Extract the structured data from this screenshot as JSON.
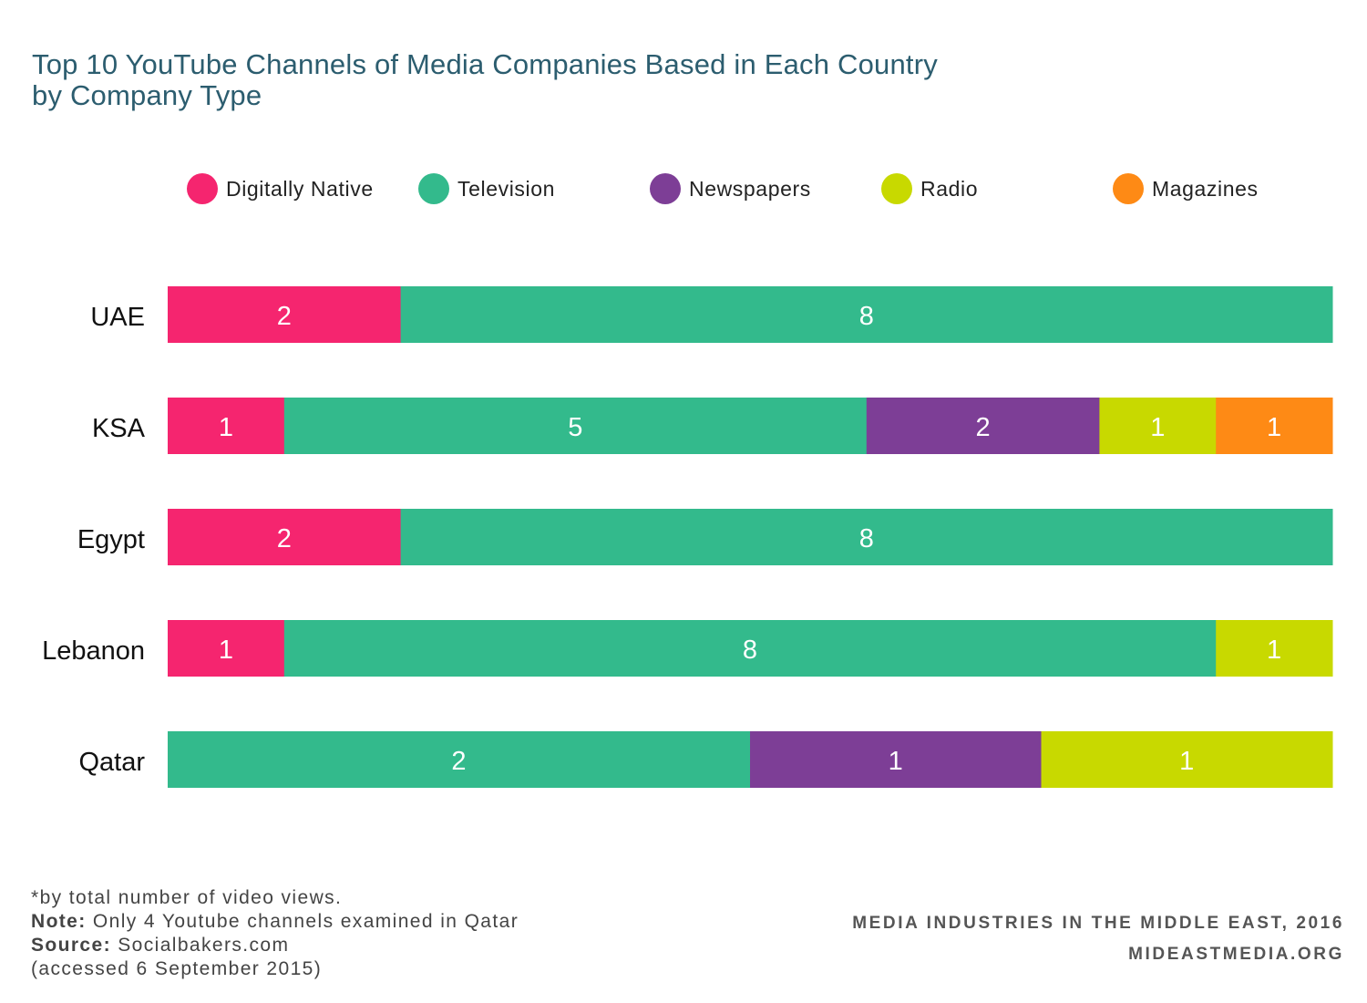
{
  "title": {
    "line1": "Top 10 YouTube Channels of Media Companies Based in Each Country",
    "line2": "by Company Type"
  },
  "colors": {
    "Digitally Native": "#f5256f",
    "Television": "#33ba8c",
    "Newspapers": "#7d3e96",
    "Radio": "#c8d900",
    "Magazines": "#fe8a15",
    "title": "#2c5d6f"
  },
  "chart_data": {
    "type": "bar",
    "orientation": "horizontal",
    "stacked": true,
    "categories": [
      "UAE",
      "KSA",
      "Egypt",
      "Lebanon",
      "Qatar"
    ],
    "series": [
      {
        "name": "Digitally Native",
        "values": [
          2,
          1,
          2,
          1,
          0
        ]
      },
      {
        "name": "Television",
        "values": [
          8,
          5,
          8,
          8,
          2
        ]
      },
      {
        "name": "Newspapers",
        "values": [
          0,
          2,
          0,
          0,
          1
        ]
      },
      {
        "name": "Radio",
        "values": [
          0,
          1,
          0,
          1,
          1
        ]
      },
      {
        "name": "Magazines",
        "values": [
          0,
          1,
          0,
          0,
          0
        ]
      }
    ],
    "normalized": true,
    "data_labels": true,
    "legend_position": "top",
    "grid": false,
    "title": "Top 10 YouTube Channels of Media Companies Based in Each Country by Company Type"
  },
  "footer": {
    "line1": "*by total number of video views.",
    "note_label": "Note:",
    "note_text": "Only 4 Youtube channels examined in Qatar",
    "source_label": "Source:",
    "source_text": "Socialbakers.com",
    "line4": "(accessed 6 September 2015)",
    "right1": "MEDIA INDUSTRIES IN THE MIDDLE EAST, 2016",
    "right2": "MIDEASTMEDIA.ORG"
  }
}
